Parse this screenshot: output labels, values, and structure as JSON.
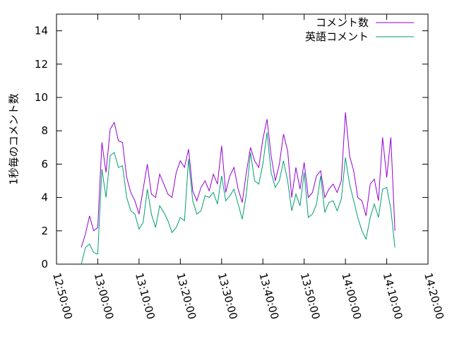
{
  "chart_data": {
    "type": "line",
    "y_label": "1秒毎のコメント数",
    "x": [
      "12:56:00",
      "12:57:00",
      "12:58:00",
      "12:59:00",
      "13:00:00",
      "13:01:00",
      "13:02:00",
      "13:03:00",
      "13:04:00",
      "13:05:00",
      "13:06:00",
      "13:07:00",
      "13:08:00",
      "13:09:00",
      "13:10:00",
      "13:11:00",
      "13:12:00",
      "13:13:00",
      "13:14:00",
      "13:15:00",
      "13:16:00",
      "13:17:00",
      "13:18:00",
      "13:19:00",
      "13:20:00",
      "13:21:00",
      "13:22:00",
      "13:23:00",
      "13:24:00",
      "13:25:00",
      "13:26:00",
      "13:27:00",
      "13:28:00",
      "13:29:00",
      "13:30:00",
      "13:31:00",
      "13:32:00",
      "13:33:00",
      "13:34:00",
      "13:35:00",
      "13:36:00",
      "13:37:00",
      "13:38:00",
      "13:39:00",
      "13:40:00",
      "13:41:00",
      "13:42:00",
      "13:43:00",
      "13:44:00",
      "13:45:00",
      "13:46:00",
      "13:47:00",
      "13:48:00",
      "13:49:00",
      "13:50:00",
      "13:51:00",
      "13:52:00",
      "13:53:00",
      "13:54:00",
      "13:55:00",
      "13:56:00",
      "13:57:00",
      "13:58:00",
      "13:59:00",
      "14:00:00",
      "14:01:00",
      "14:02:00",
      "14:03:00",
      "14:04:00",
      "14:05:00",
      "14:06:00",
      "14:07:00",
      "14:08:00",
      "14:09:00",
      "14:10:00",
      "14:11:00",
      "14:12:00"
    ],
    "series": [
      {
        "name": "コメント数",
        "color": "#9400d3",
        "values": [
          1.0,
          1.8,
          2.9,
          2.0,
          2.2,
          7.3,
          5.5,
          8.1,
          8.5,
          7.4,
          7.3,
          5.2,
          4.3,
          3.8,
          3.0,
          4.5,
          6.0,
          4.2,
          4.0,
          5.4,
          4.8,
          4.2,
          4.0,
          5.5,
          6.2,
          5.8,
          6.9,
          4.4,
          3.8,
          4.6,
          5.0,
          4.4,
          5.4,
          4.8,
          7.1,
          4.3,
          5.3,
          5.8,
          4.5,
          3.7,
          5.5,
          7.0,
          6.2,
          5.8,
          7.5,
          8.7,
          6.5,
          5.0,
          6.0,
          7.8,
          6.8,
          4.0,
          5.8,
          4.5,
          6.1,
          4.0,
          4.3,
          5.3,
          5.6,
          4.0,
          4.5,
          4.8,
          4.3,
          5.0,
          9.1,
          6.5,
          5.6,
          4.0,
          3.8,
          2.9,
          4.8,
          5.1,
          3.8,
          7.6,
          5.2,
          7.6,
          2.0
        ]
      },
      {
        "name": "英語コメント",
        "color": "#009e73",
        "values": [
          0.0,
          1.0,
          1.2,
          0.7,
          0.6,
          5.7,
          4.0,
          6.5,
          6.7,
          5.8,
          5.9,
          4.0,
          3.2,
          3.0,
          2.1,
          2.5,
          4.5,
          3.0,
          2.2,
          3.5,
          3.1,
          2.6,
          1.9,
          2.2,
          2.8,
          2.6,
          6.3,
          3.8,
          3.0,
          3.2,
          4.1,
          4.0,
          4.3,
          3.6,
          5.3,
          3.8,
          4.1,
          4.5,
          3.6,
          2.7,
          4.2,
          6.7,
          5.0,
          4.8,
          6.0,
          7.9,
          5.5,
          4.6,
          5.0,
          6.2,
          5.0,
          3.2,
          4.2,
          3.5,
          5.5,
          2.8,
          3.0,
          3.6,
          5.3,
          3.1,
          3.7,
          3.8,
          3.2,
          3.9,
          6.4,
          4.8,
          3.8,
          2.8,
          2.0,
          1.5,
          2.8,
          3.6,
          2.8,
          4.5,
          4.6,
          3.3,
          1.0
        ]
      }
    ],
    "xlim": [
      "12:50:00",
      "14:20:00"
    ],
    "xticks": [
      "12:50:00",
      "13:00:00",
      "13:10:00",
      "13:20:00",
      "13:30:00",
      "13:40:00",
      "13:50:00",
      "14:00:00",
      "14:10:00",
      "14:20:00"
    ],
    "ylim": [
      0,
      15
    ],
    "yticks": [
      0,
      2,
      4,
      6,
      8,
      10,
      12,
      14
    ],
    "legend": "top-right"
  }
}
